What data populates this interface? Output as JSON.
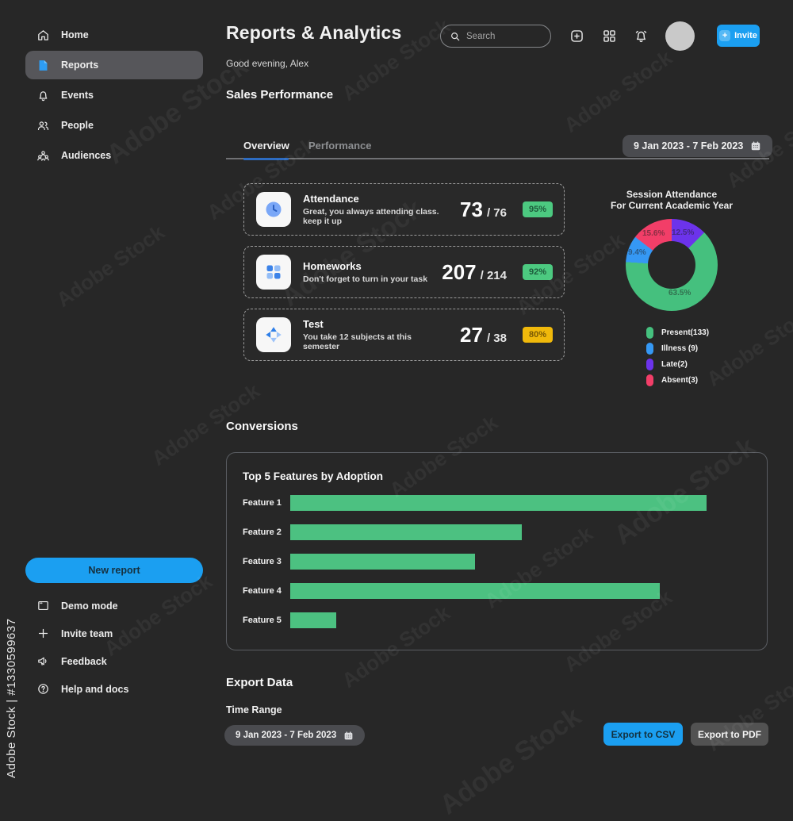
{
  "watermark": {
    "tile_text": "Adobe Stock",
    "side_text": "Adobe Stock | #1330599637"
  },
  "sidebar": {
    "items": [
      {
        "label": "Home",
        "icon": "home-icon",
        "active": false
      },
      {
        "label": "Reports",
        "icon": "document-icon",
        "active": true
      },
      {
        "label": "Events",
        "icon": "bell-icon",
        "active": false
      },
      {
        "label": "People",
        "icon": "people-icon",
        "active": false
      },
      {
        "label": "Audiences",
        "icon": "audiences-icon",
        "active": false
      }
    ],
    "new_report_label": "New report",
    "footer_items": [
      {
        "label": "Demo mode",
        "icon": "window-icon"
      },
      {
        "label": "Invite team",
        "icon": "plus-icon"
      },
      {
        "label": "Feedback",
        "icon": "megaphone-icon"
      },
      {
        "label": "Help and docs",
        "icon": "help-icon"
      }
    ]
  },
  "header": {
    "title": "Reports & Analytics",
    "greeting": "Good evening, Alex",
    "search_placeholder": "Search",
    "invite_label": "Invite",
    "invite_plus": "+",
    "accent_color": "#1b9ff1"
  },
  "sales": {
    "section_title": "Sales Performance",
    "tabs": [
      {
        "label": "Overview",
        "active": true
      },
      {
        "label": "Performance",
        "active": false
      }
    ],
    "date_range": "9 Jan 2023 - 7 Feb 2023",
    "cards": [
      {
        "title": "Attendance",
        "subtitle": "Great, you always attending class. keep it up",
        "value": "73",
        "total": "/ 76",
        "badge": "95%",
        "badge_color": "green",
        "icon": "clock-icon"
      },
      {
        "title": "Homeworks",
        "subtitle": "Don't forget to turn in your task",
        "value": "207",
        "total": "/ 214",
        "badge": "92%",
        "badge_color": "green",
        "icon": "grid-squares-icon"
      },
      {
        "title": "Test",
        "subtitle": "You take 12 subjects at this semester",
        "value": "27",
        "total": "/ 38",
        "badge": "80%",
        "badge_color": "yellow",
        "icon": "pinwheel-icon"
      }
    ]
  },
  "conversions": {
    "section_title": "Conversions"
  },
  "export": {
    "section_title": "Export Data",
    "time_range_label": "Time Range",
    "date_range": "9 Jan 2023 - 7 Feb 2023",
    "csv_label": "Export to CSV",
    "pdf_label": "Export to PDF"
  },
  "chart_data": [
    {
      "type": "pie",
      "donut": true,
      "title": "Session Attendance For Current Academic Year",
      "title_lines": [
        "Session Attendance",
        "For Current Academic Year"
      ],
      "legend_position": "bottom",
      "segments_clockwise_from_top": [
        {
          "name": "Late",
          "percent": 12.5,
          "percent_label": "12.5%",
          "color": "#6c33eb"
        },
        {
          "name": "Present",
          "percent": 63.5,
          "percent_label": "63.5%",
          "color": "#45c07e"
        },
        {
          "name": "Illness",
          "percent": 9.4,
          "percent_label": "9.4%",
          "color": "#3598f4"
        },
        {
          "name": "Absent",
          "percent": 15.6,
          "percent_label": "15.6%",
          "color": "#f23e68"
        }
      ],
      "legend": [
        {
          "label": "Present(133)",
          "count": 133,
          "color": "#45c07e"
        },
        {
          "label": "Illness (9)",
          "count": 9,
          "color": "#3598f4"
        },
        {
          "label": "Late(2)",
          "count": 2,
          "color": "#6c33eb"
        },
        {
          "label": "Absent(3)",
          "count": 3,
          "color": "#f23e68"
        }
      ]
    },
    {
      "type": "bar",
      "orientation": "horizontal",
      "title": "Top 5 Features by Adoption",
      "categories": [
        "Feature 1",
        "Feature 2",
        "Feature 3",
        "Feature 4",
        "Feature 5"
      ],
      "values": [
        90,
        50,
        40,
        80,
        10
      ],
      "xlim": [
        0,
        100
      ],
      "bar_color": "#4cc181",
      "grid": false
    }
  ]
}
